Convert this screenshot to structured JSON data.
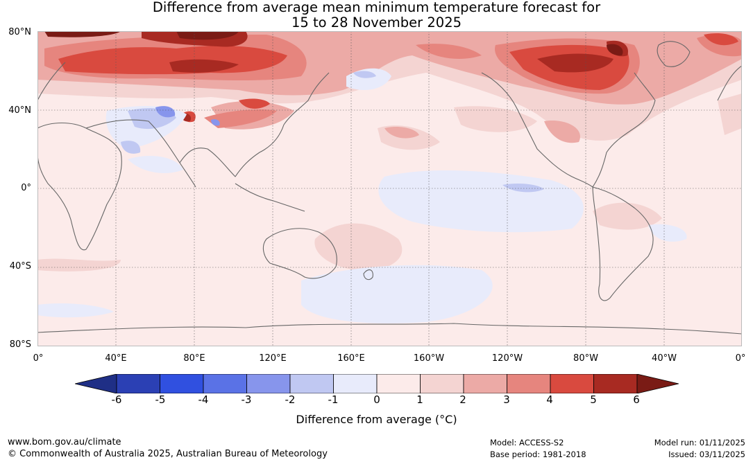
{
  "title": {
    "line1": "Difference from average mean minimum temperature forecast for",
    "line2": "15 to 28 November 2025"
  },
  "map": {
    "lat_labels": [
      "80°N",
      "40°N",
      "0°",
      "40°S",
      "80°S"
    ],
    "lon_labels": [
      "0°",
      "40°E",
      "80°E",
      "120°E",
      "160°E",
      "160°W",
      "120°W",
      "80°W",
      "40°W",
      "0°"
    ],
    "anomaly_regions": [
      {
        "region": "Arctic Siberia",
        "anomaly_c": 5.5
      },
      {
        "region": "Northern Canada / Hudson Bay",
        "anomaly_c": 5.5
      },
      {
        "region": "Central Asia",
        "anomaly_c": 4
      },
      {
        "region": "Tibetan Plateau",
        "anomaly_c": -3
      },
      {
        "region": "Equatorial Pacific",
        "anomaly_c": -0.5
      },
      {
        "region": "Southern Ocean (Pacific sector)",
        "anomaly_c": -0.5
      }
    ]
  },
  "colorbar": {
    "ticks": [
      "-6",
      "-5",
      "-4",
      "-3",
      "-2",
      "-1",
      "0",
      "1",
      "2",
      "3",
      "4",
      "5",
      "6"
    ],
    "colors": [
      "#1f2f86",
      "#2b40b4",
      "#3050e0",
      "#5a72e6",
      "#8795ec",
      "#c0c8f2",
      "#e8ebfb",
      "#fcebea",
      "#f4d4d2",
      "#ecaaa6",
      "#e6857e",
      "#d94a3f",
      "#a82a22",
      "#7a1b15"
    ],
    "label": "Difference from average (°C)"
  },
  "footer": {
    "url": "www.bom.gov.au/climate",
    "copyright": "© Commonwealth of Australia 2025, Australian Bureau of Meteorology",
    "model": "Model: ACCESS-S2",
    "base_period": "Base period: 1981-2018",
    "model_run": "Model run: 01/11/2025",
    "issued": "Issued: 03/11/2025"
  }
}
